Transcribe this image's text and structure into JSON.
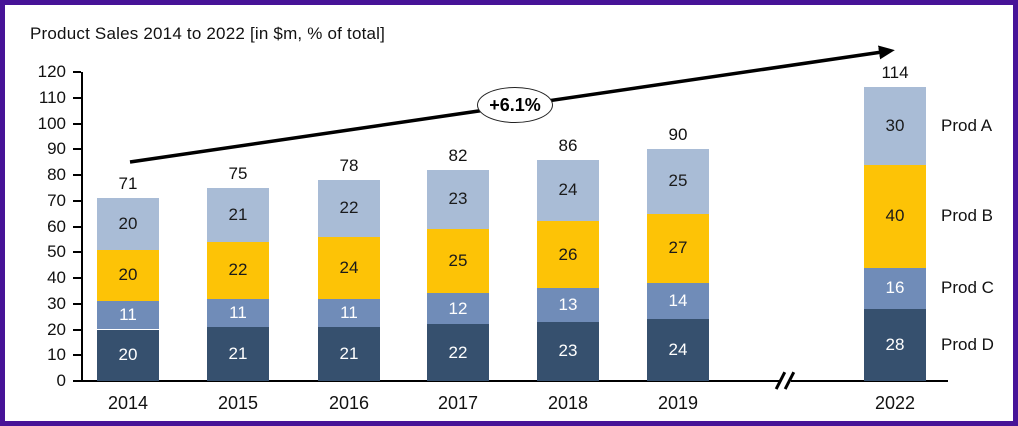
{
  "window": {
    "border_color": "#471397",
    "background": "#ffffff"
  },
  "title": "Product Sales 2014 to 2022 [in $m, % of total]",
  "chart_data": {
    "type": "bar",
    "variant": "stacked-column",
    "title": "Product Sales 2014 to 2022 [in $m, % of total]",
    "unit": "$m",
    "categories": [
      "2014",
      "2015",
      "2016",
      "2017",
      "2018",
      "2019",
      "2022"
    ],
    "series": [
      {
        "name": "Prod D",
        "values": [
          20,
          21,
          21,
          22,
          23,
          24,
          28
        ],
        "color": "#36506e",
        "label_color": "#ffffff"
      },
      {
        "name": "Prod C",
        "values": [
          11,
          11,
          11,
          12,
          13,
          14,
          16
        ],
        "color": "#708cb8",
        "label_color": "#ffffff"
      },
      {
        "name": "Prod B",
        "values": [
          20,
          22,
          24,
          25,
          26,
          27,
          40
        ],
        "color": "#fdc306",
        "label_color": "#1a1a1a"
      },
      {
        "name": "Prod A",
        "values": [
          20,
          21,
          22,
          23,
          24,
          25,
          30
        ],
        "color": "#a9bcd6",
        "label_color": "#1a1a1a"
      }
    ],
    "stack_order": "bottom-to-top",
    "totals": [
      71,
      75,
      78,
      82,
      86,
      90,
      114
    ],
    "y_ticks": [
      0,
      10,
      20,
      30,
      40,
      50,
      60,
      70,
      80,
      90,
      100,
      110,
      120
    ],
    "ylim": [
      0,
      120
    ],
    "grid": "off",
    "x_axis_break_between": [
      "2019",
      "2022"
    ],
    "break_symbol": "//",
    "legend_position": "right-of-last-bar",
    "legend_order": [
      "Prod A",
      "Prod B",
      "Prod C",
      "Prod D"
    ],
    "annotation": {
      "growth_label": "+6.1%"
    }
  }
}
